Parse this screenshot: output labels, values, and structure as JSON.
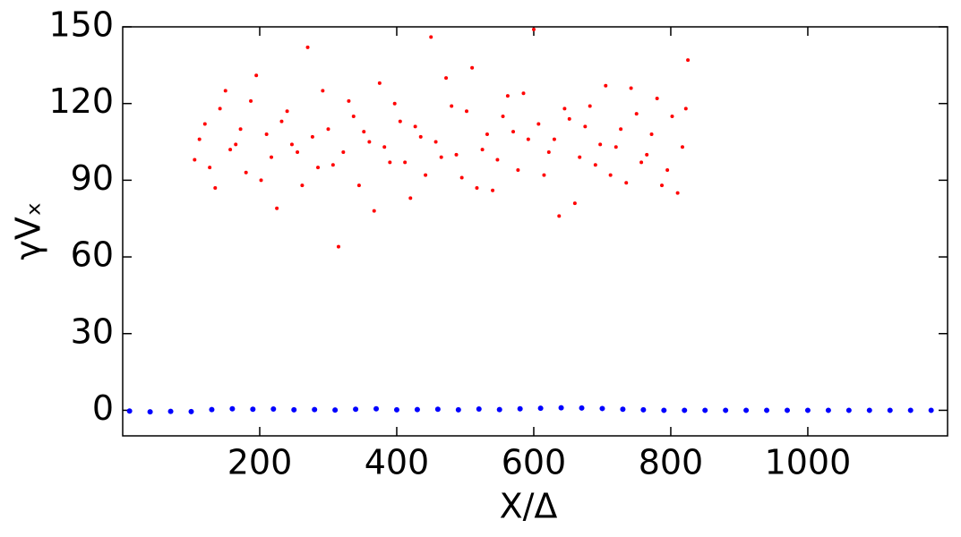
{
  "chart_data": {
    "type": "scatter",
    "xlabel": "X/Δ",
    "ylabel": "γVₓ",
    "xlim": [
      0,
      1204
    ],
    "ylim": [
      -10,
      150
    ],
    "xticks": [
      200,
      400,
      600,
      800,
      1000
    ],
    "yticks": [
      0,
      30,
      60,
      90,
      120,
      150
    ],
    "grid": false,
    "series": [
      {
        "color": "#ff0000",
        "x": [
          105,
          120,
          135,
          150,
          165,
          180,
          195,
          210,
          225,
          240,
          255,
          270,
          285,
          300,
          315,
          330,
          345,
          360,
          375,
          390,
          405,
          420,
          435,
          450,
          465,
          480,
          495,
          510,
          525,
          540,
          555,
          570,
          585,
          600,
          615,
          630,
          645,
          660,
          675,
          690,
          705,
          720,
          735,
          750,
          765,
          780,
          795,
          810,
          825,
          112,
          127,
          142,
          157,
          172,
          187,
          202,
          217,
          232,
          247,
          262,
          277,
          292,
          307,
          322,
          337,
          352,
          367,
          382,
          397,
          412,
          427,
          442,
          457,
          472,
          487,
          502,
          517,
          532,
          547,
          562,
          577,
          592,
          607,
          622,
          637,
          652,
          667,
          682,
          697,
          712,
          727,
          742,
          757,
          772,
          787,
          802,
          817,
          822
        ],
        "y": [
          98,
          112,
          87,
          125,
          104,
          93,
          131,
          108,
          79,
          117,
          101,
          142,
          95,
          110,
          64,
          121,
          88,
          105,
          128,
          97,
          113,
          83,
          107,
          146,
          99,
          119,
          91,
          134,
          102,
          86,
          115,
          109,
          124,
          149,
          92,
          106,
          118,
          81,
          111,
          96,
          127,
          103,
          89,
          116,
          100,
          122,
          94,
          85,
          137,
          106,
          95,
          118,
          102,
          110,
          121,
          90,
          99,
          113,
          104,
          88,
          107,
          125,
          96,
          101,
          115,
          109,
          78,
          103,
          120,
          97,
          111,
          92,
          105,
          130,
          100,
          117,
          87,
          108,
          98,
          123,
          94,
          106,
          112,
          101,
          76,
          114,
          99,
          119,
          104,
          92,
          110,
          126,
          97,
          108,
          88,
          115,
          103,
          118
        ]
      },
      {
        "color": "#0000ff",
        "x": [
          10,
          40,
          70,
          100,
          130,
          160,
          190,
          220,
          250,
          280,
          310,
          340,
          370,
          400,
          430,
          460,
          490,
          520,
          550,
          580,
          610,
          640,
          670,
          700,
          730,
          760,
          790,
          820,
          850,
          880,
          910,
          940,
          970,
          1000,
          1030,
          1060,
          1090,
          1120,
          1150,
          1180
        ],
        "y": [
          -0.3,
          -0.6,
          -0.4,
          -0.5,
          0.3,
          0.6,
          0.4,
          0.5,
          0.2,
          0.3,
          0.1,
          0.4,
          0.6,
          0.2,
          0.3,
          0.4,
          0.2,
          0.5,
          0.3,
          0.6,
          0.8,
          1.0,
          0.9,
          0.7,
          0.4,
          0.2,
          0,
          0,
          0,
          0,
          0,
          0,
          0,
          0,
          0,
          0,
          0,
          0,
          0,
          0
        ]
      }
    ]
  }
}
